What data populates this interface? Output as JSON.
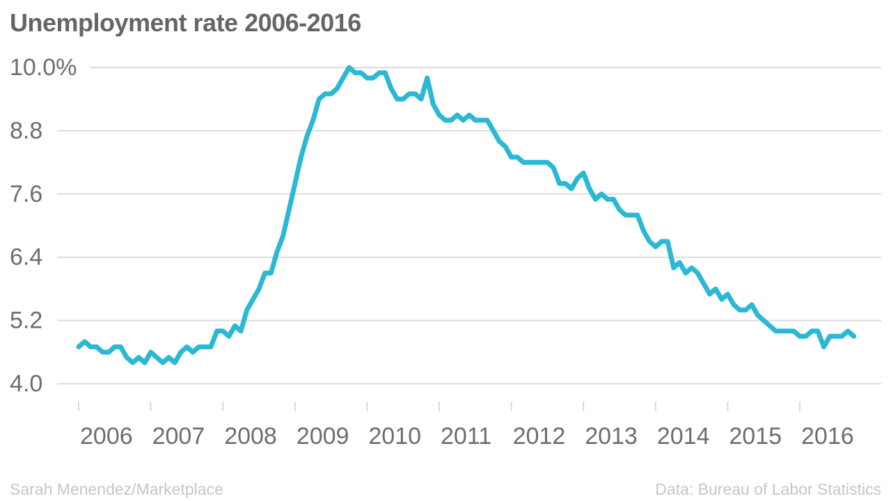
{
  "title": "Unemployment rate 2006-2016",
  "footer": {
    "credit": "Sarah Menendez/Marketplace",
    "source": "Data: Bureau of Labor Statistics"
  },
  "colors": {
    "line": "#2ab8d4",
    "gridline": "#dcdcdc",
    "tick": "#d9d9d9",
    "axis_text": "#6d6d6d",
    "title_text": "#656565",
    "footer_text": "#c6c6c6",
    "background": "#ffffff"
  },
  "chart_data": {
    "type": "line",
    "title": "Unemployment rate 2006-2016",
    "xlabel": "",
    "ylabel": "Unemployment rate (%)",
    "unit": "%",
    "frequency": "monthly",
    "x_start": "2006-01",
    "x_end": "2016-10",
    "grid": true,
    "legend": false,
    "y_axis": {
      "tick_labels": [
        "10.0%",
        "8.8",
        "7.6",
        "6.4",
        "5.2",
        "4.0"
      ],
      "tick_values": [
        10.0,
        8.8,
        7.6,
        6.4,
        5.2,
        4.0
      ],
      "range_top": 10.0,
      "range_bottom": 4.0
    },
    "x_axis": {
      "tick_labels": [
        "2006",
        "2007",
        "2008",
        "2009",
        "2010",
        "2011",
        "2012",
        "2013",
        "2014",
        "2015",
        "2016"
      ]
    },
    "series": [
      {
        "name": "Unemployment rate",
        "start": "2006-01",
        "values": [
          4.7,
          4.8,
          4.7,
          4.7,
          4.6,
          4.6,
          4.7,
          4.7,
          4.5,
          4.4,
          4.5,
          4.4,
          4.6,
          4.5,
          4.4,
          4.5,
          4.4,
          4.6,
          4.7,
          4.6,
          4.7,
          4.7,
          4.7,
          5.0,
          5.0,
          4.9,
          5.1,
          5.0,
          5.4,
          5.6,
          5.8,
          6.1,
          6.1,
          6.5,
          6.8,
          7.3,
          7.8,
          8.3,
          8.7,
          9.0,
          9.4,
          9.5,
          9.5,
          9.6,
          9.8,
          10.0,
          9.9,
          9.9,
          9.8,
          9.8,
          9.9,
          9.9,
          9.6,
          9.4,
          9.4,
          9.5,
          9.5,
          9.4,
          9.8,
          9.3,
          9.1,
          9.0,
          9.0,
          9.1,
          9.0,
          9.1,
          9.0,
          9.0,
          9.0,
          8.8,
          8.6,
          8.5,
          8.3,
          8.3,
          8.2,
          8.2,
          8.2,
          8.2,
          8.2,
          8.1,
          7.8,
          7.8,
          7.7,
          7.9,
          8.0,
          7.7,
          7.5,
          7.6,
          7.5,
          7.5,
          7.3,
          7.2,
          7.2,
          7.2,
          6.9,
          6.7,
          6.6,
          6.7,
          6.7,
          6.2,
          6.3,
          6.1,
          6.2,
          6.1,
          5.9,
          5.7,
          5.8,
          5.6,
          5.7,
          5.5,
          5.4,
          5.4,
          5.5,
          5.3,
          5.2,
          5.1,
          5.0,
          5.0,
          5.0,
          5.0,
          4.9,
          4.9,
          5.0,
          5.0,
          4.7,
          4.9,
          4.9,
          4.9,
          5.0,
          4.9
        ]
      }
    ]
  }
}
